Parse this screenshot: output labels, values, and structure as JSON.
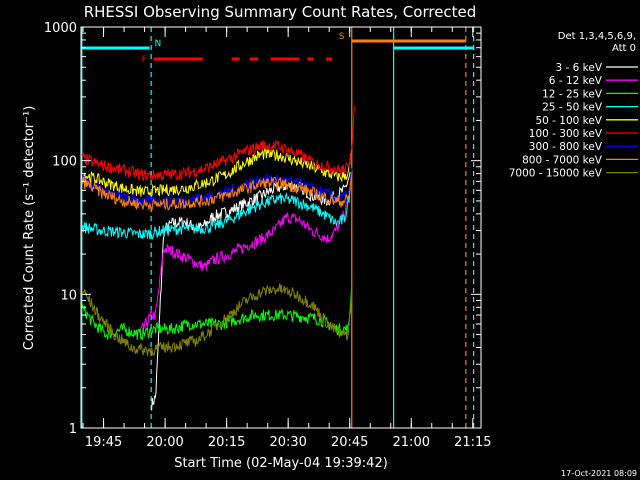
{
  "chart_data": {
    "type": "line",
    "title": "RHESSI Observing Summary Count Rates, Corrected",
    "xlabel": "Start Time (02-May-04 19:39:42)",
    "ylabel": "Corrected Count Rate (s⁻¹ detector⁻¹)",
    "ylog": true,
    "ylim": [
      1,
      1000
    ],
    "xlim_minutes": [
      -0.2,
      97.3
    ],
    "y_ticks": [
      {
        "v": 1,
        "label": "1"
      },
      {
        "v": 10,
        "label": "10"
      },
      {
        "v": 100,
        "label": "100"
      },
      {
        "v": 1000,
        "label": "1000"
      }
    ],
    "x_ticks": [
      {
        "t": 5.3,
        "label": "19:45"
      },
      {
        "t": 20.3,
        "label": "20:00"
      },
      {
        "t": 35.3,
        "label": "20:15"
      },
      {
        "t": 50.3,
        "label": "20:30"
      },
      {
        "t": 65.3,
        "label": "20:45"
      },
      {
        "t": 80.3,
        "label": "21:00"
      },
      {
        "t": 95.3,
        "label": "21:15"
      }
    ],
    "legend_header": [
      "Det 1,3,4,5,6,9,",
      "Att 0"
    ],
    "series": [
      {
        "name": "3 - 6 keV",
        "color": "#ffffff",
        "x": [
          17,
          18,
          20,
          22,
          25,
          28,
          30,
          32,
          36,
          40,
          44,
          47,
          50,
          53,
          56,
          60,
          62,
          64,
          65.5
        ],
        "y": [
          1.5,
          1.7,
          30,
          34,
          35,
          31,
          33,
          38,
          42,
          48,
          55,
          62,
          65,
          64,
          55,
          50,
          55,
          60,
          80
        ]
      },
      {
        "name": "6 - 12 keV",
        "color": "#ff00ff",
        "x": [
          14,
          17,
          18,
          20,
          22,
          25,
          28,
          30,
          32,
          36,
          40,
          44,
          47,
          50,
          53,
          56,
          60,
          62,
          64,
          65.5
        ],
        "y": [
          5,
          7,
          7,
          22,
          21,
          19,
          17,
          16,
          18,
          20,
          23,
          26,
          30,
          38,
          36,
          30,
          26,
          30,
          40,
          60
        ]
      },
      {
        "name": "12 - 25 keV",
        "color": "#00ff00",
        "x": [
          0,
          3,
          6,
          10,
          14,
          18,
          22,
          26,
          30,
          34,
          38,
          42,
          46,
          50,
          54,
          58,
          62,
          64,
          65,
          66
        ],
        "y": [
          8,
          6,
          5,
          5.5,
          5,
          5.5,
          5.5,
          6,
          6,
          6,
          6.5,
          7,
          7,
          7,
          6.8,
          6.5,
          5.5,
          5.5,
          5.5,
          14
        ]
      },
      {
        "name": "25 - 50 keV",
        "color": "#00ffff",
        "x": [
          0,
          5,
          10,
          15,
          20,
          24,
          28,
          32,
          36,
          40,
          44,
          48,
          52,
          56,
          60,
          62,
          64,
          65.5
        ],
        "y": [
          32,
          30,
          29,
          28,
          30,
          31,
          31,
          32,
          36,
          42,
          48,
          52,
          50,
          45,
          38,
          34,
          36,
          60
        ]
      },
      {
        "name": "50 - 100 keV",
        "color": "#ffff00",
        "x": [
          0,
          5,
          10,
          15,
          20,
          25,
          30,
          35,
          40,
          44,
          48,
          52,
          56,
          60,
          63,
          65,
          66
        ],
        "y": [
          80,
          70,
          62,
          58,
          60,
          62,
          68,
          78,
          98,
          112,
          110,
          100,
          90,
          80,
          75,
          80,
          130
        ]
      },
      {
        "name": "100 - 300 keV",
        "color": "#ff0000",
        "x": [
          0,
          5,
          10,
          15,
          20,
          25,
          30,
          35,
          40,
          44,
          48,
          52,
          56,
          60,
          63,
          65,
          66,
          66.5
        ],
        "y": [
          105,
          92,
          85,
          78,
          78,
          80,
          87,
          100,
          118,
          130,
          128,
          115,
          98,
          90,
          85,
          88,
          150,
          280
        ]
      },
      {
        "name": "300 - 800 keV",
        "color": "#0000ff",
        "x": [
          0,
          5,
          10,
          15,
          20,
          25,
          30,
          35,
          40,
          44,
          48,
          52,
          56,
          60,
          63,
          65,
          66
        ],
        "y": [
          72,
          60,
          53,
          50,
          50,
          51,
          53,
          58,
          66,
          72,
          72,
          68,
          62,
          56,
          52,
          55,
          90
        ]
      },
      {
        "name": "800 - 7000 keV",
        "color": "#ff8000",
        "x": [
          0,
          5,
          10,
          15,
          20,
          25,
          30,
          35,
          40,
          44,
          48,
          52,
          56,
          60,
          63,
          65,
          66
        ],
        "y": [
          70,
          57,
          50,
          47,
          47,
          48,
          50,
          55,
          62,
          68,
          68,
          64,
          58,
          52,
          49,
          52,
          85
        ]
      },
      {
        "name": "7000 - 15000 keV",
        "color": "#808000",
        "x": [
          0,
          4,
          8,
          12,
          16,
          20,
          24,
          28,
          32,
          36,
          40,
          44,
          48,
          52,
          56,
          60,
          63,
          65,
          66
        ],
        "y": [
          11,
          7,
          5,
          4,
          3.8,
          4,
          4.2,
          4.5,
          5.5,
          7,
          9,
          10.5,
          11,
          10,
          8.5,
          6,
          5,
          5,
          12
        ]
      }
    ],
    "state_bars": [
      {
        "label": "N",
        "color": "#00ffff",
        "segments": [
          [
            0,
            16.5
          ],
          [
            76,
            95.5
          ]
        ]
      },
      {
        "label": "F",
        "color": "#ff0000",
        "segments": [
          [
            17.5,
            29.5
          ],
          [
            36.5,
            38.5
          ],
          [
            41,
            43
          ],
          [
            46,
            53
          ],
          [
            55,
            56.5
          ],
          [
            59.5,
            61
          ]
        ]
      },
      {
        "label": "S",
        "color": "#ff8000",
        "segments": [
          [
            65.8,
            93.6
          ]
        ]
      }
    ],
    "vertical_lines": [
      {
        "t": 0,
        "color": "#00ffff",
        "dash": false
      },
      {
        "t": 16.9,
        "color": "#00ffff",
        "dash": true
      },
      {
        "t": 65.8,
        "color": "#ff8000",
        "dash": false
      },
      {
        "t": 76.0,
        "color": "#00ffff",
        "dash": false
      },
      {
        "t": 93.6,
        "color": "#ff8000",
        "dash": true
      },
      {
        "t": 95.5,
        "color": "#00ffff",
        "dash": true
      }
    ],
    "timestamp": "17-Oct-2021 08:09"
  }
}
